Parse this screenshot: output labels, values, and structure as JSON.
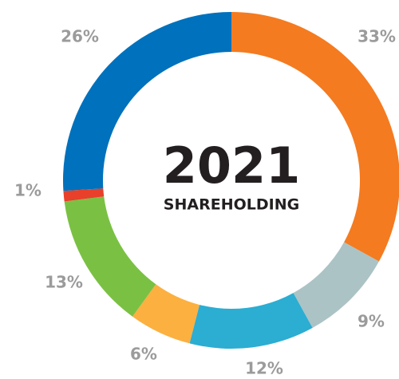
{
  "chart_data": {
    "type": "pie",
    "title": "2021",
    "subtitle": "SHAREHOLDING",
    "values": [
      33,
      9,
      12,
      6,
      13,
      1,
      26
    ],
    "value_labels": [
      "33%",
      "9%",
      "12%",
      "6%",
      "13%",
      "1%",
      "26%"
    ],
    "colors": [
      "#f47b20",
      "#abc3c5",
      "#2cadd2",
      "#fbb040",
      "#7ac143",
      "#e8402a",
      "#0071bc"
    ]
  }
}
